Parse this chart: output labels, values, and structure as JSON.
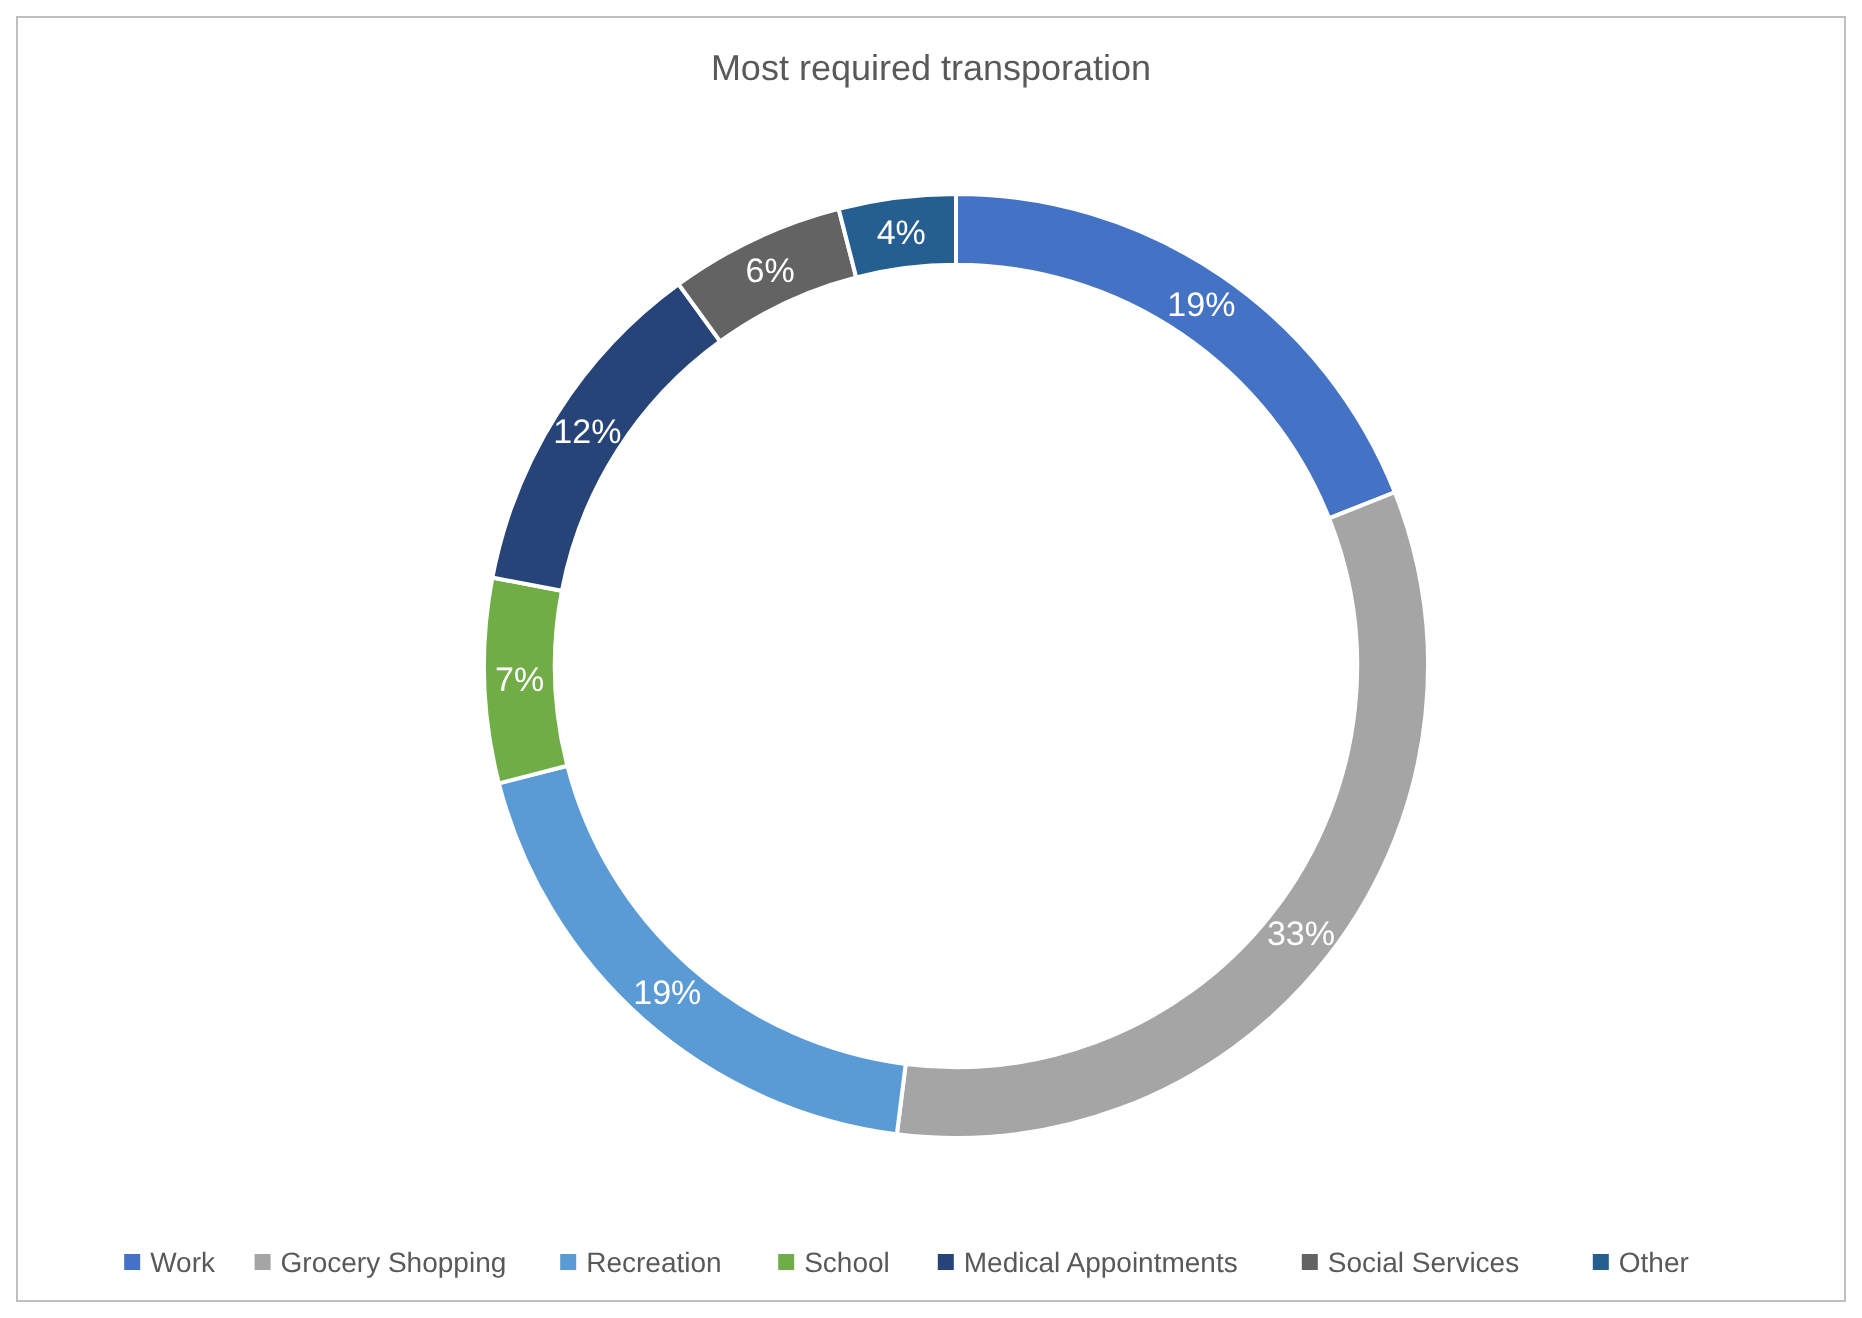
{
  "chart_data": {
    "type": "donut",
    "title": "Most required transporation",
    "categories": [
      "Work",
      "Grocery Shopping",
      "Recreation",
      "School",
      "Medical Appointments",
      "Social Services",
      "Other"
    ],
    "values": [
      19,
      33,
      19,
      7,
      12,
      6,
      4
    ],
    "value_labels": [
      "19%",
      "33%",
      "19%",
      "7%",
      "12%",
      "6%",
      "4%"
    ],
    "colors": [
      "#4472c4",
      "#a5a5a5",
      "#5b9bd5",
      "#70ad47",
      "#264478",
      "#636363",
      "#255e91"
    ],
    "legend": "bottom"
  }
}
